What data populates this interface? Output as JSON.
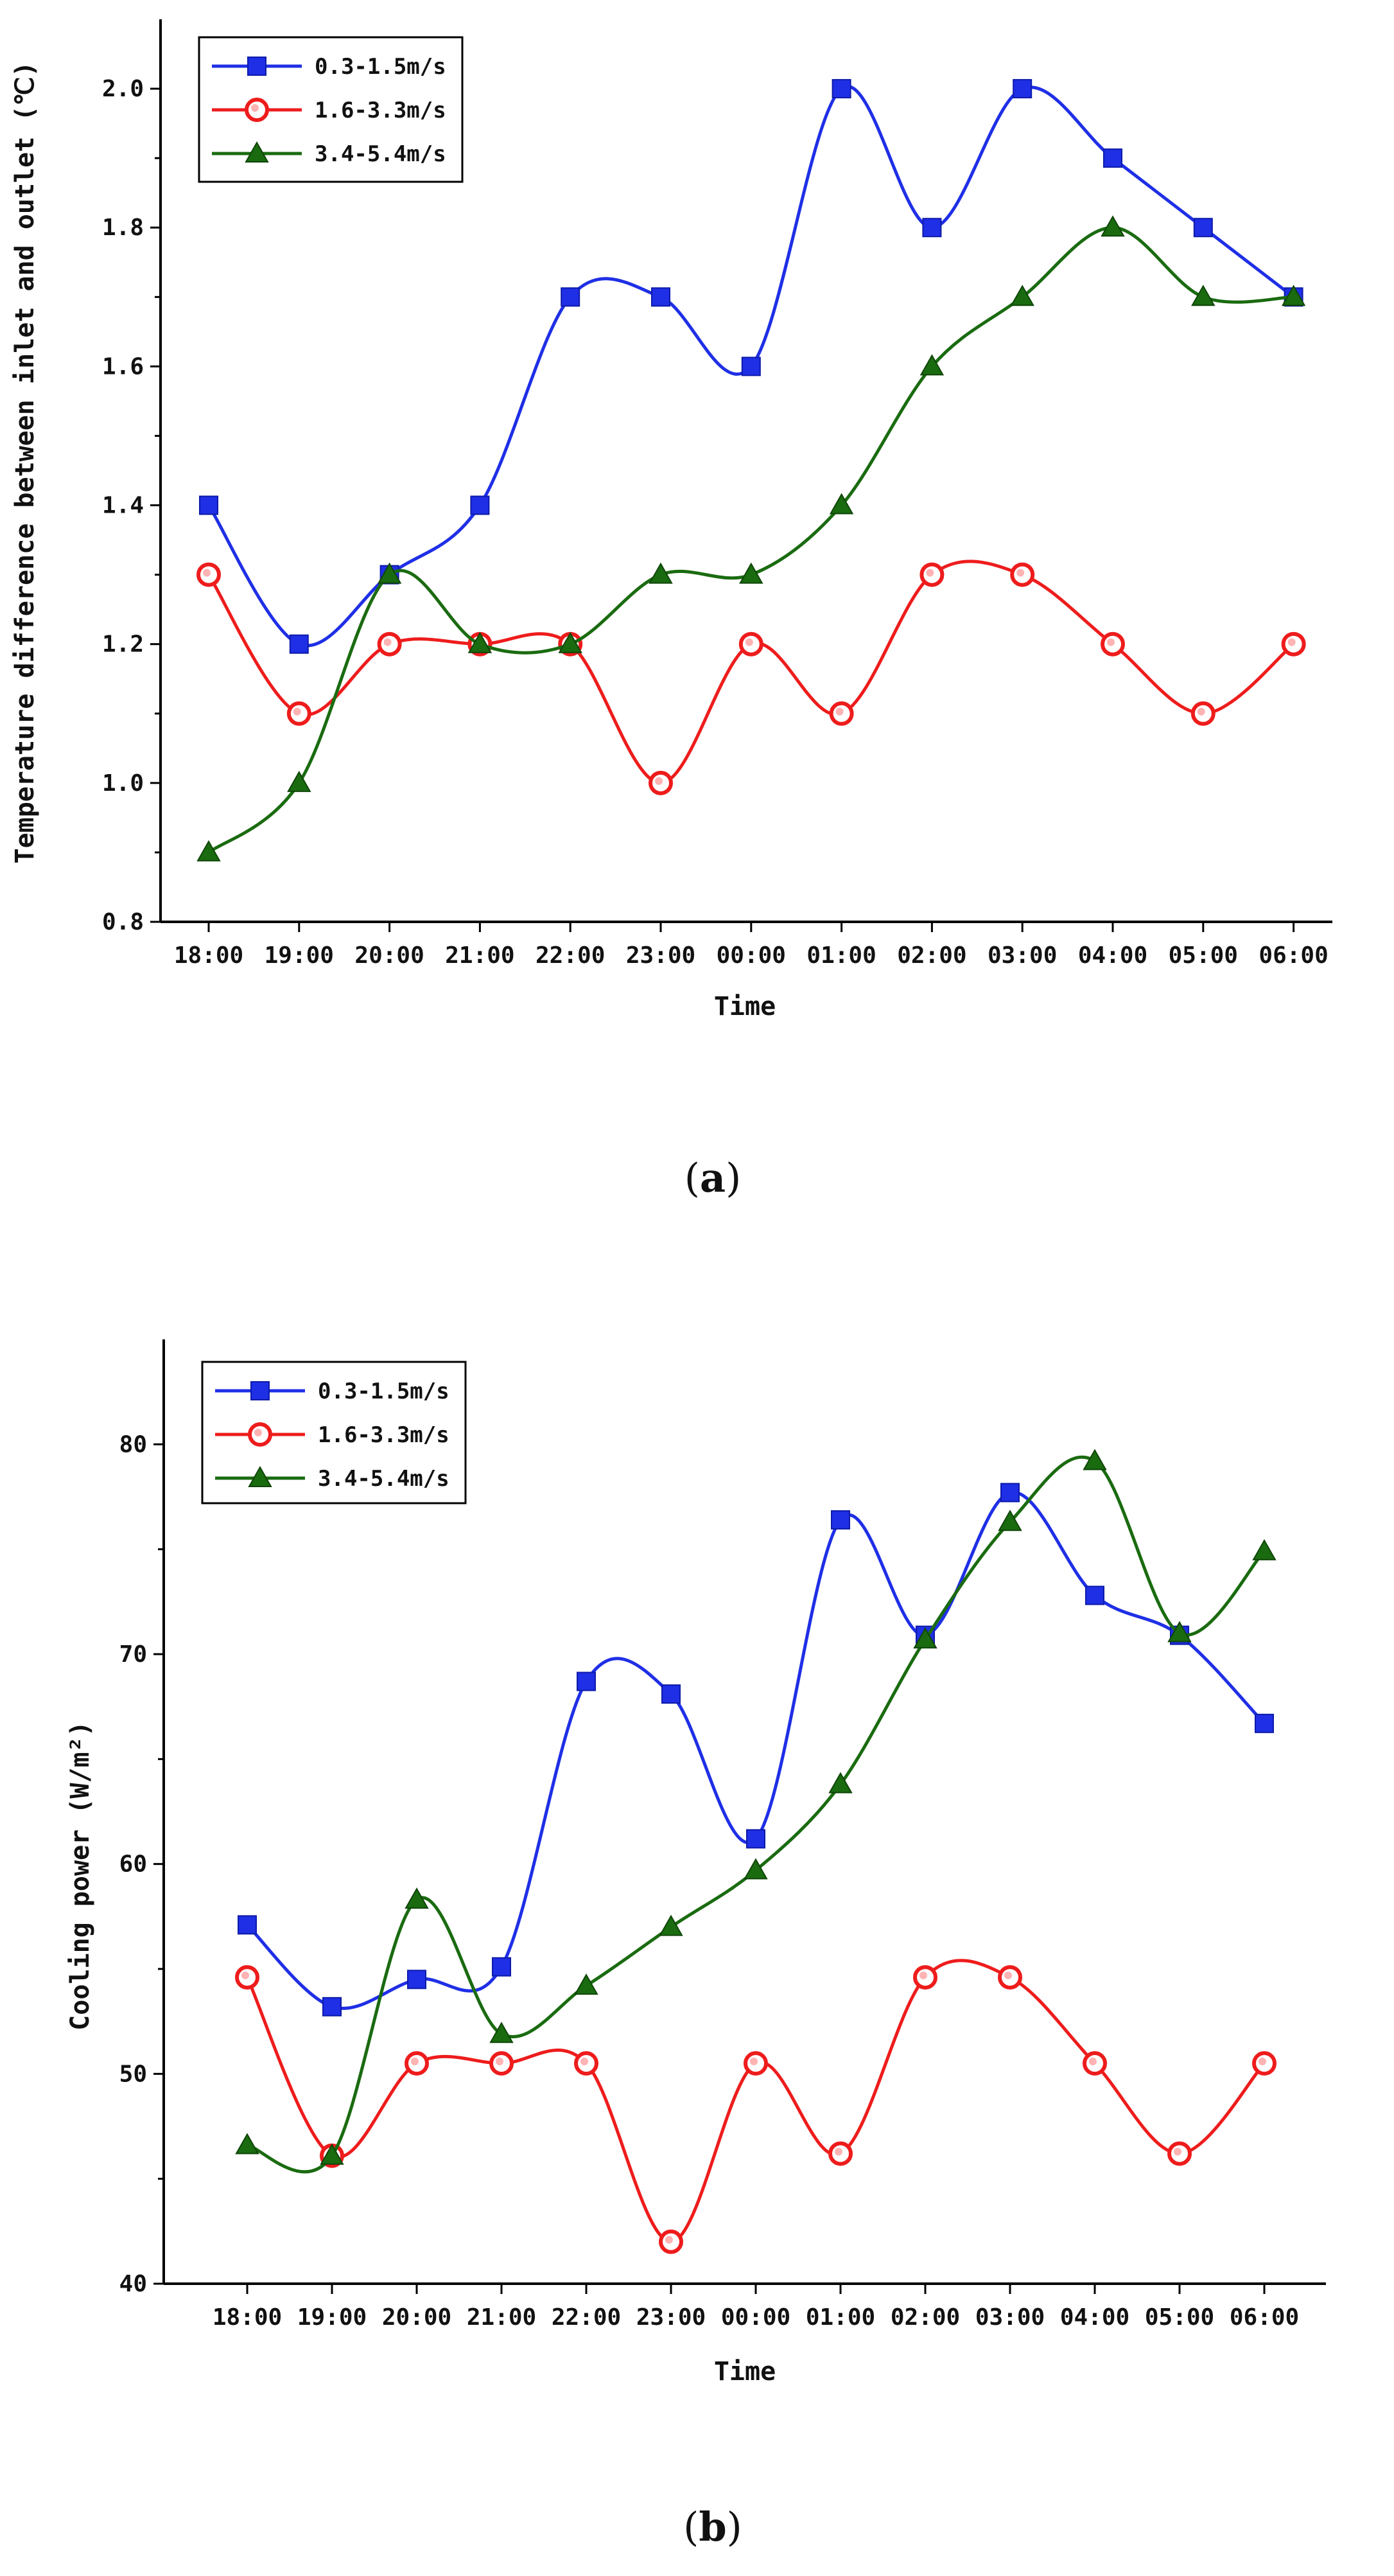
{
  "chart_data": [
    {
      "type": "line",
      "panel_label": "a",
      "title": "",
      "xlabel": "Time",
      "ylabel": "Temperature difference between inlet and outlet (℃)",
      "categories": [
        "18:00",
        "19:00",
        "20:00",
        "21:00",
        "22:00",
        "23:00",
        "00:00",
        "01:00",
        "02:00",
        "03:00",
        "04:00",
        "05:00",
        "06:00"
      ],
      "ylim": [
        0.8,
        2.1
      ],
      "yticks": [
        "0.8",
        "1.0",
        "1.2",
        "1.4",
        "1.6",
        "1.8",
        "2.0"
      ],
      "ytick_values": [
        0.8,
        1.0,
        1.2,
        1.4,
        1.6,
        1.8,
        2.0
      ],
      "legend_position": "top-left",
      "series": [
        {
          "name": "0.3-1.5m/s",
          "color": "#1f2fe6",
          "marker": "square",
          "values": [
            1.4,
            1.2,
            1.3,
            1.4,
            1.7,
            1.7,
            1.6,
            2.0,
            1.8,
            2.0,
            1.9,
            1.8,
            1.7
          ]
        },
        {
          "name": "1.6-3.3m/s",
          "color": "#ee1c1c",
          "marker": "circle",
          "values": [
            1.3,
            1.1,
            1.2,
            1.2,
            1.2,
            1.0,
            1.2,
            1.1,
            1.3,
            1.3,
            1.2,
            1.1,
            1.2
          ]
        },
        {
          "name": "3.4-5.4m/s",
          "color": "#1a6b10",
          "marker": "triangle",
          "values": [
            0.9,
            1.0,
            1.3,
            1.2,
            1.2,
            1.3,
            1.3,
            1.4,
            1.6,
            1.7,
            1.8,
            1.7,
            1.7
          ]
        }
      ]
    },
    {
      "type": "line",
      "panel_label": "b",
      "title": "",
      "xlabel": "Time",
      "ylabel": "Cooling power (W/m²)",
      "categories": [
        "18:00",
        "19:00",
        "20:00",
        "21:00",
        "22:00",
        "23:00",
        "00:00",
        "01:00",
        "02:00",
        "03:00",
        "04:00",
        "05:00",
        "06:00"
      ],
      "ylim": [
        40,
        85
      ],
      "yticks": [
        "40",
        "50",
        "60",
        "70",
        "80"
      ],
      "ytick_values": [
        40,
        50,
        60,
        70,
        80
      ],
      "legend_position": "top-left",
      "series": [
        {
          "name": "0.3-1.5m/s",
          "color": "#1f2fe6",
          "marker": "square",
          "values": [
            57.1,
            53.2,
            54.5,
            55.1,
            68.7,
            68.1,
            61.2,
            76.4,
            70.9,
            77.7,
            72.8,
            70.9,
            66.7
          ]
        },
        {
          "name": "1.6-3.3m/s",
          "color": "#ee1c1c",
          "marker": "circle",
          "values": [
            54.6,
            46.1,
            50.5,
            50.5,
            50.5,
            42.0,
            50.5,
            46.2,
            54.6,
            54.6,
            50.5,
            46.2,
            50.5
          ]
        },
        {
          "name": "3.4-5.4m/s",
          "color": "#1a6b10",
          "marker": "triangle",
          "values": [
            46.6,
            46.1,
            58.3,
            51.9,
            54.2,
            57.0,
            59.7,
            63.8,
            70.7,
            76.3,
            79.2,
            71.0,
            74.9
          ]
        }
      ]
    }
  ],
  "captions": {
    "a": {
      "open": "(",
      "letter": "a",
      "close": ")"
    },
    "b": {
      "open": "(",
      "letter": "b",
      "close": ")"
    }
  }
}
